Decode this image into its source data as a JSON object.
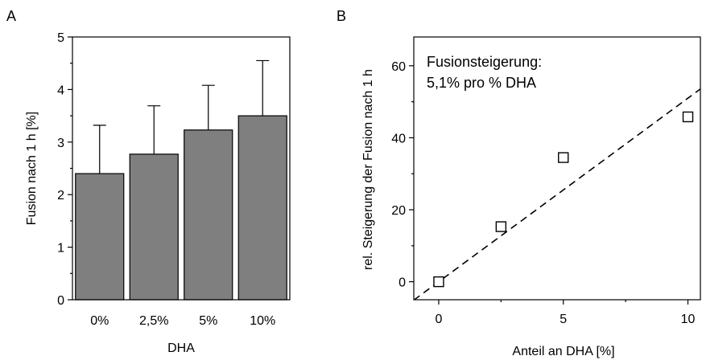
{
  "panels": {
    "a_label": "A",
    "b_label": "B"
  },
  "chart_data": [
    {
      "type": "bar",
      "title": "",
      "xlabel": "DHA",
      "ylabel": "Fusion nach 1 h [%]",
      "categories": [
        "0%",
        "2,5%",
        "5%",
        "10%"
      ],
      "values": [
        2.4,
        2.77,
        3.23,
        3.5
      ],
      "error_upper": [
        0.92,
        0.92,
        0.85,
        1.05
      ],
      "ylim": [
        0,
        5
      ],
      "yticks": [
        0,
        1,
        2,
        3,
        4,
        5
      ],
      "bar_color": "#7f7f7f",
      "grid": false
    },
    {
      "type": "scatter",
      "title": "",
      "xlabel": "Anteil an DHA [%]",
      "ylabel": "rel. Steigerung der Fusion nach 1 h",
      "x": [
        0,
        2.5,
        5,
        10
      ],
      "y": [
        0,
        15.3,
        34.5,
        45.8
      ],
      "marker": "open-square",
      "fit_line": {
        "style": "dashed",
        "slope": 5.1,
        "intercept": 0
      },
      "annotation": [
        "Fusionsteigerung:",
        "5,1% pro % DHA"
      ],
      "xlim": [
        -1,
        10.5
      ],
      "ylim": [
        -5,
        68
      ],
      "xticks": [
        0,
        5,
        10
      ],
      "yticks": [
        0,
        20,
        40,
        60
      ],
      "grid": false
    }
  ]
}
